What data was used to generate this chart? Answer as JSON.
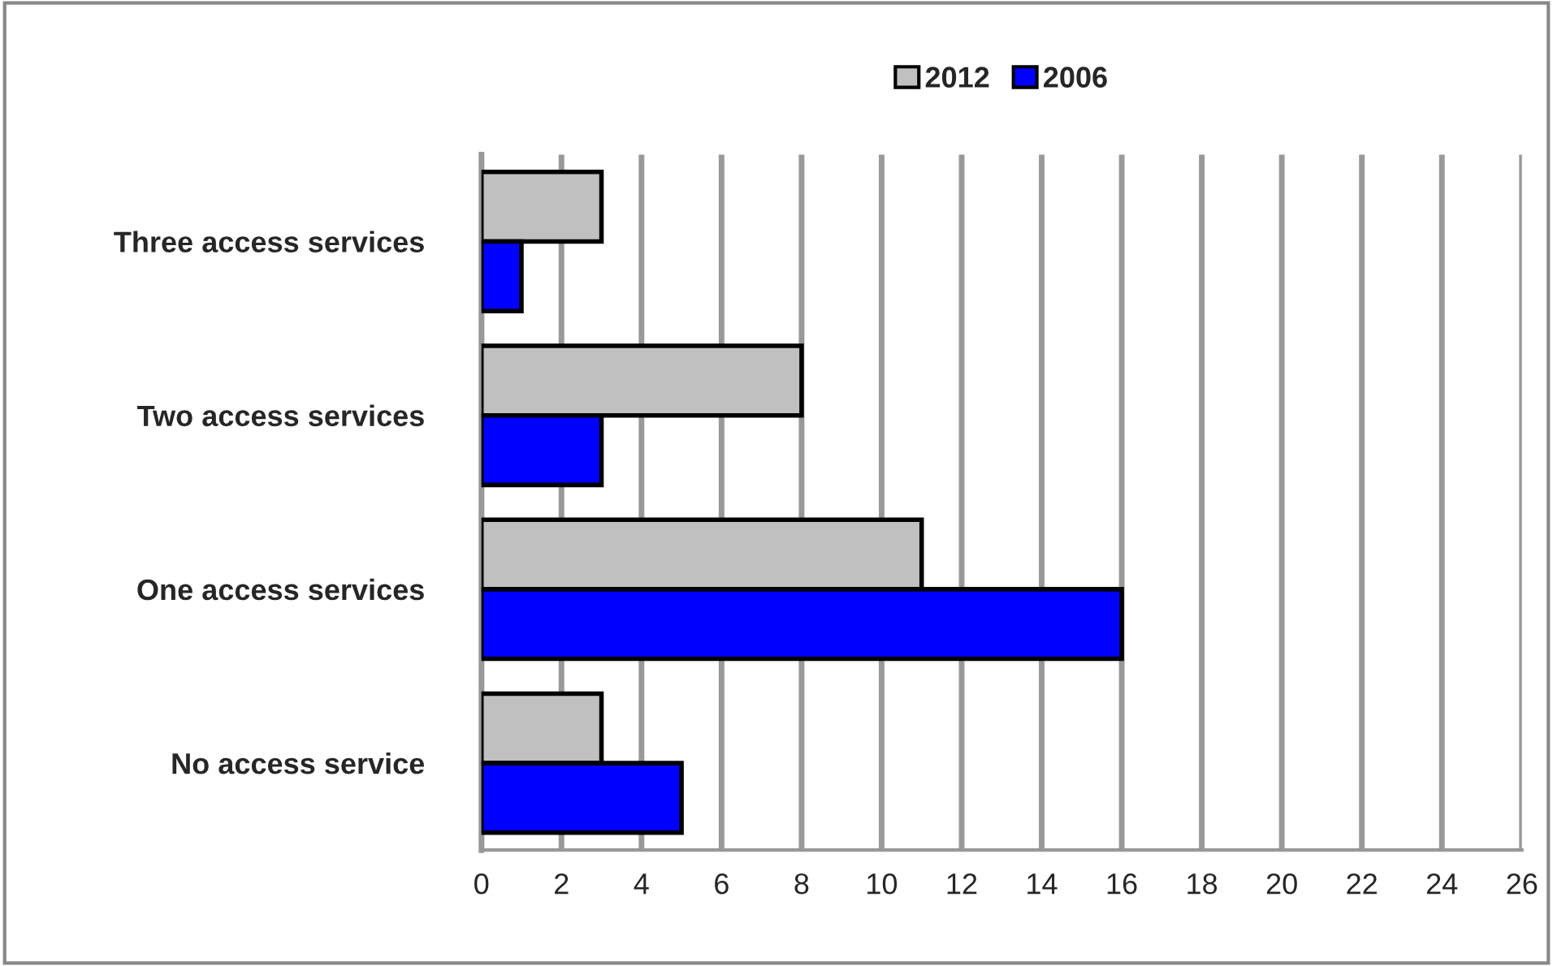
{
  "chart_data": {
    "type": "bar",
    "orientation": "horizontal",
    "categories": [
      "Three access services",
      "Two access services",
      "One access services",
      "No access service"
    ],
    "series": [
      {
        "name": "2012",
        "color": "#c0c0c0",
        "values": [
          3,
          8,
          11,
          3
        ]
      },
      {
        "name": "2006",
        "color": "#0000ff",
        "values": [
          1,
          3,
          16,
          5
        ]
      }
    ],
    "xlim": [
      0,
      26
    ],
    "xticks": [
      0,
      2,
      4,
      6,
      8,
      10,
      12,
      14,
      16,
      18,
      20,
      22,
      24,
      26
    ],
    "grid": "x",
    "legend": "top"
  }
}
